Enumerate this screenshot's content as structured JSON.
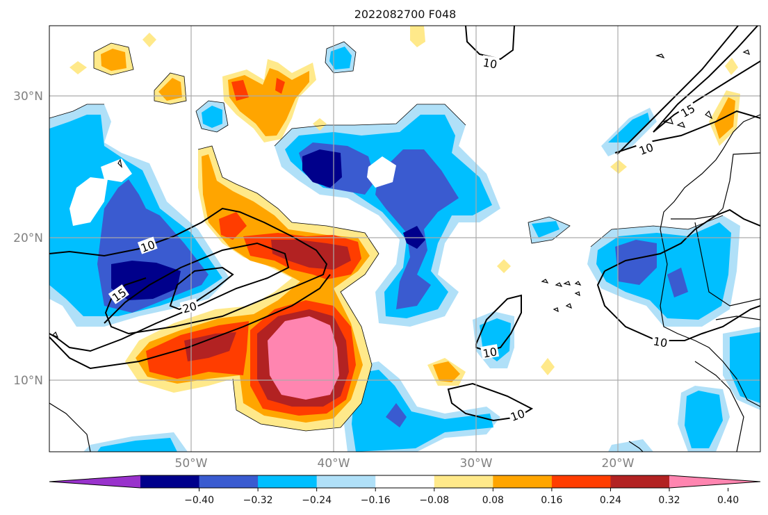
{
  "title": "2022082700 F048",
  "lat_labels": [
    "30°N",
    "20°N",
    "10°N"
  ],
  "lon_labels": [
    "50°W",
    "40°W",
    "30°W",
    "20°W"
  ],
  "colorbar": {
    "ticks": [
      "−0.40",
      "−0.32",
      "−0.24",
      "−0.16",
      "−0.08",
      "0.08",
      "0.16",
      "0.24",
      "0.32",
      "0.40"
    ],
    "colors": [
      "#9932cc",
      "#00008b",
      "#3a5bd0",
      "#00bfff",
      "#b0e0f8",
      "#ffffff",
      "#ffe98a",
      "#ffa500",
      "#ff3d00",
      "#b22222",
      "#ff85b0"
    ]
  },
  "contour_labels": [
    "10",
    "10",
    "15",
    "20",
    "10",
    "10",
    "10",
    "15",
    "10"
  ]
}
